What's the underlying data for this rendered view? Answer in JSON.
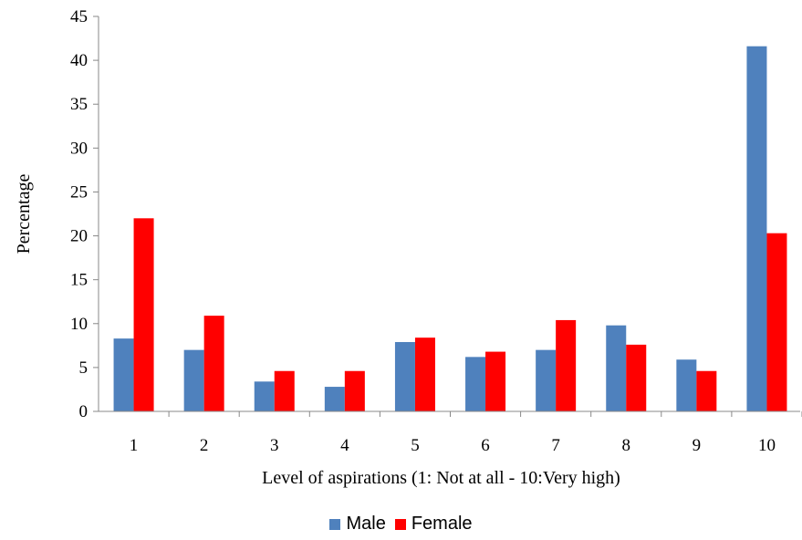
{
  "chart_data": {
    "type": "bar",
    "title": "",
    "xlabel": "Level of aspirations (1: Not at all - 10:Very high)",
    "ylabel": "Percentage",
    "categories": [
      "1",
      "2",
      "3",
      "4",
      "5",
      "6",
      "7",
      "8",
      "9",
      "10"
    ],
    "series": [
      {
        "name": "Male",
        "color": "#4f81bd",
        "values": [
          8.3,
          7.0,
          3.4,
          2.8,
          7.9,
          6.2,
          7.0,
          9.8,
          5.9,
          41.6
        ]
      },
      {
        "name": "Female",
        "color": "#ff0000",
        "values": [
          22.0,
          10.9,
          4.6,
          4.6,
          8.4,
          6.8,
          10.4,
          7.6,
          4.6,
          20.3
        ]
      }
    ],
    "ylim": [
      0,
      45
    ],
    "yticks": [
      0,
      5,
      10,
      15,
      20,
      25,
      30,
      35,
      40,
      45
    ],
    "grid": false,
    "legend_position": "bottom"
  }
}
